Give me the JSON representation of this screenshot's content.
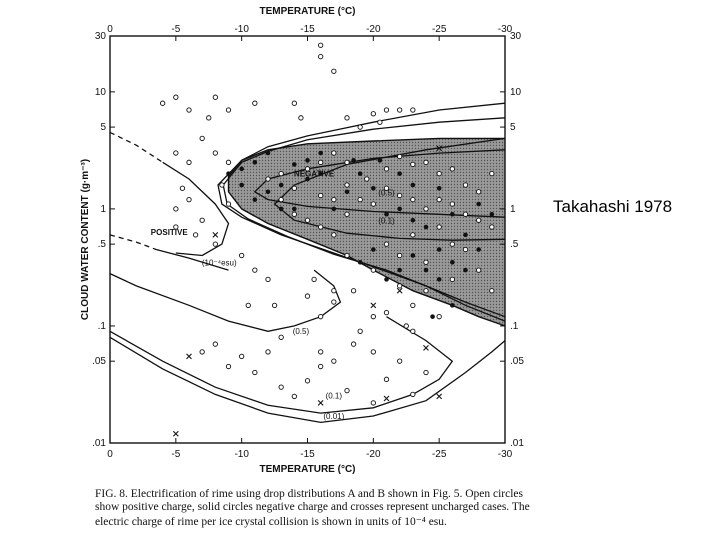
{
  "side_label": "Takahashi 1978",
  "caption": {
    "line1": "FIG. 8. Electrification of rime using drop distributions A and B shown in Fig. 5. Open circles",
    "line2": "show positive charge, solid circles negative charge and crosses represent uncharged cases. The",
    "line3": "electric charge of rime per ice crystal collision is shown in units of 10⁻⁴ esu."
  },
  "chart_data": {
    "type": "scatter",
    "xlabel_top": "TEMPERATURE (°C)",
    "xlabel_bottom": "TEMPERATURE (°C)",
    "ylabel": "CLOUD WATER CONTENT (g·m⁻³)",
    "xlim": [
      0,
      -30
    ],
    "ylim": [
      0.01,
      30
    ],
    "yscale": "log",
    "x_ticks": [
      "0",
      "-5",
      "-10",
      "-15",
      "-20",
      "-25",
      "-30"
    ],
    "y_ticks": [
      "30",
      "10",
      "5",
      "1",
      ".5",
      ".1",
      ".05",
      ".01"
    ],
    "y_tick_values": [
      30,
      10,
      5,
      1,
      0.5,
      0.1,
      0.05,
      0.01
    ],
    "region_labels": {
      "positive": "POSITIVE",
      "negative": "NEGATIVE"
    },
    "contour_labels": [
      "(10⁻⁴esu)",
      "(0.5)",
      "(0.1)",
      "(0.01)",
      "(0.1)",
      "(0.5)"
    ],
    "series": [
      {
        "marker": "open-circle",
        "points": [
          [
            -4,
            8
          ],
          [
            -5,
            9
          ],
          [
            -6,
            7
          ],
          [
            -8,
            9
          ],
          [
            -7.5,
            6
          ],
          [
            -9,
            7
          ],
          [
            -11,
            8
          ],
          [
            -14,
            8
          ],
          [
            -14.5,
            6
          ],
          [
            -16,
            20
          ],
          [
            -17,
            15
          ],
          [
            -16,
            25
          ],
          [
            -5,
            3
          ],
          [
            -6,
            2.5
          ],
          [
            -7,
            4
          ],
          [
            -8,
            3
          ],
          [
            -9,
            2.5
          ],
          [
            -5.5,
            1.5
          ],
          [
            -5,
            1
          ],
          [
            -6,
            1.2
          ],
          [
            -5,
            0.7
          ],
          [
            -6.5,
            0.6
          ],
          [
            -7,
            0.8
          ],
          [
            -8,
            0.5
          ],
          [
            -9,
            1.1
          ],
          [
            -8.5,
            1.6
          ],
          [
            -10,
            0.4
          ],
          [
            -11,
            0.3
          ],
          [
            -12,
            0.25
          ],
          [
            -12.5,
            0.15
          ],
          [
            -15,
            0.18
          ],
          [
            -17,
            0.2
          ],
          [
            -13,
            0.08
          ],
          [
            -12,
            0.06
          ],
          [
            -10,
            0.055
          ],
          [
            -8,
            0.07
          ],
          [
            -7,
            0.06
          ],
          [
            -16,
            0.06
          ],
          [
            -17,
            0.05
          ],
          [
            -18.5,
            0.07
          ],
          [
            -20,
            0.06
          ],
          [
            -19,
            0.09
          ],
          [
            -21,
            0.035
          ],
          [
            -22,
            0.05
          ],
          [
            -23,
            0.09
          ],
          [
            -24,
            0.04
          ],
          [
            -18,
            0.028
          ],
          [
            -20,
            0.022
          ],
          [
            -23,
            0.026
          ],
          [
            -15,
            0.034
          ],
          [
            -13,
            0.03
          ],
          [
            -11,
            0.04
          ],
          [
            -9,
            0.045
          ],
          [
            -16,
            0.045
          ],
          [
            -14,
            0.025
          ],
          [
            -20,
            6.5
          ],
          [
            -21,
            7
          ],
          [
            -22,
            7
          ],
          [
            -23,
            7
          ],
          [
            -20.5,
            5.5
          ],
          [
            -19,
            5
          ],
          [
            -18,
            6
          ],
          [
            -17,
            3
          ],
          [
            -16,
            2.5
          ],
          [
            -15,
            2.2
          ],
          [
            -14,
            1.5
          ],
          [
            -13,
            2
          ],
          [
            -12,
            1.8
          ],
          [
            -18,
            1.6
          ],
          [
            -19,
            1.2
          ],
          [
            -20,
            1.1
          ],
          [
            -17,
            1.2
          ],
          [
            -16,
            1.3
          ],
          [
            -18,
            0.9
          ],
          [
            -19.5,
            1.8
          ],
          [
            -21,
            1.5
          ],
          [
            -22,
            1.3
          ],
          [
            -23,
            1.2
          ],
          [
            -24,
            1.0
          ],
          [
            -25,
            1.2
          ],
          [
            -26,
            1.1
          ],
          [
            -27,
            0.9
          ],
          [
            -28,
            0.8
          ],
          [
            -29,
            0.7
          ],
          [
            -25,
            0.7
          ],
          [
            -26,
            0.5
          ],
          [
            -23,
            0.6
          ],
          [
            -21,
            0.5
          ],
          [
            -22,
            0.4
          ],
          [
            -24,
            0.35
          ],
          [
            -27,
            0.45
          ],
          [
            -28,
            0.3
          ],
          [
            -20,
            0.3
          ],
          [
            -18,
            0.4
          ],
          [
            -26,
            0.25
          ],
          [
            -22,
            0.22
          ],
          [
            -29,
            0.2
          ],
          [
            -23,
            0.15
          ],
          [
            -24,
            0.2
          ],
          [
            -27,
            1.6
          ],
          [
            -28,
            1.4
          ],
          [
            -29,
            2.0
          ],
          [
            -26,
            2.2
          ],
          [
            -25,
            2.0
          ],
          [
            -24,
            2.5
          ],
          [
            -23,
            2.4
          ],
          [
            -22,
            2.8
          ],
          [
            -21,
            2.2
          ],
          [
            -18,
            2.5
          ],
          [
            -13,
            1.2
          ],
          [
            -14,
            0.9
          ],
          [
            -15,
            0.8
          ],
          [
            -16,
            0.7
          ],
          [
            -17,
            0.6
          ],
          [
            -18.5,
            0.2
          ],
          [
            -21,
            0.13
          ],
          [
            -22.5,
            0.1
          ],
          [
            -25,
            0.12
          ],
          [
            -20,
            0.12
          ],
          [
            -16,
            0.12
          ],
          [
            -15.5,
            0.25
          ],
          [
            -17,
            0.16
          ],
          [
            -10.5,
            0.15
          ]
        ]
      },
      {
        "marker": "solid-circle",
        "points": [
          [
            -9,
            2
          ],
          [
            -10,
            1.6
          ],
          [
            -10,
            2.2
          ],
          [
            -11,
            1.2
          ],
          [
            -12,
            1.4
          ],
          [
            -13,
            1.0
          ],
          [
            -14,
            1.0
          ],
          [
            -13,
            1.6
          ],
          [
            -14,
            2.4
          ],
          [
            -15,
            1.8
          ],
          [
            -16,
            2.0
          ],
          [
            -17,
            1.0
          ],
          [
            -18,
            1.4
          ],
          [
            -18.5,
            2.6
          ],
          [
            -19,
            2.0
          ],
          [
            -20,
            1.5
          ],
          [
            -21,
            0.9
          ],
          [
            -22,
            1.0
          ],
          [
            -23,
            0.8
          ],
          [
            -24,
            0.7
          ],
          [
            -25,
            1.5
          ],
          [
            -26,
            0.9
          ],
          [
            -27,
            0.6
          ],
          [
            -28,
            1.1
          ],
          [
            -29,
            0.9
          ],
          [
            -22,
            2.0
          ],
          [
            -23,
            1.6
          ],
          [
            -25,
            0.45
          ],
          [
            -26,
            0.35
          ],
          [
            -27,
            0.3
          ],
          [
            -28,
            0.45
          ],
          [
            -23,
            0.4
          ],
          [
            -24,
            0.3
          ],
          [
            -22,
            0.3
          ],
          [
            -20,
            0.45
          ],
          [
            -19,
            0.35
          ],
          [
            -21,
            0.25
          ],
          [
            -25,
            0.25
          ],
          [
            -24.5,
            0.12
          ],
          [
            -26,
            0.15
          ],
          [
            -12,
            3.0
          ],
          [
            -11,
            2.5
          ],
          [
            -15,
            2.6
          ],
          [
            -16,
            3.0
          ],
          [
            -20.5,
            2.6
          ]
        ]
      },
      {
        "marker": "cross",
        "points": [
          [
            -8,
            0.6
          ],
          [
            -6,
            0.055
          ],
          [
            -5,
            0.012
          ],
          [
            -16,
            0.022
          ],
          [
            -21,
            0.024
          ],
          [
            -24,
            0.065
          ],
          [
            -25,
            0.025
          ],
          [
            -25,
            3.3
          ],
          [
            -22,
            0.2
          ],
          [
            -20,
            0.15
          ]
        ]
      }
    ]
  }
}
